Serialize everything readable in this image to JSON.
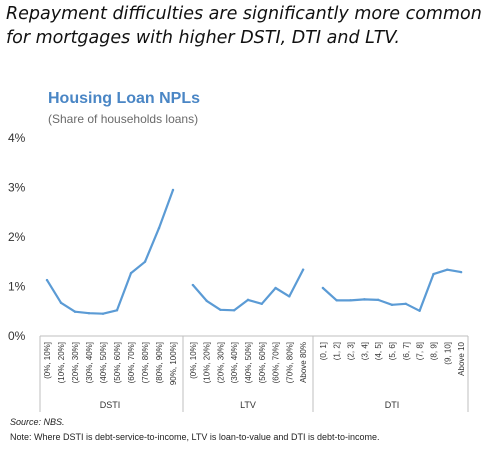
{
  "headline": "Repayment difficulties are significantly more common for mortgages with higher DSTI, DTI and LTV.",
  "source": "Source: NBS.",
  "note": "Note: Where DSTI is debt-service-to-income, LTV is loan-to-value and DTI is debt-to-income.",
  "chart_data": {
    "type": "line",
    "title": "Housing Loan NPLs",
    "subtitle": "(Share of households loans)",
    "ylim": [
      0,
      4
    ],
    "y_ticks": [
      "0%",
      "1%",
      "2%",
      "3%",
      "4%"
    ],
    "grid": false,
    "series_color": "#5b9bd5",
    "groups": [
      {
        "name": "DSTI",
        "categories": [
          "(0%, 10%]",
          "(10%, 20%]",
          "(20%, 30%]",
          "(30%, 40%]",
          "(40%, 50%]",
          "(50%, 60%]",
          "(60%, 70%]",
          "(70%, 80%]",
          "(80%, 90%]",
          "90%, 100%]"
        ],
        "values": [
          1.13,
          0.67,
          0.49,
          0.46,
          0.45,
          0.52,
          1.27,
          1.5,
          2.18,
          2.95
        ]
      },
      {
        "name": "LTV",
        "categories": [
          "(0%, 10%]",
          "(10%, 20%]",
          "(20%, 30%]",
          "(30%, 40%]",
          "(40%, 50%]",
          "(50%, 60%]",
          "(60%, 70%]",
          "(70%, 80%]",
          "Above 80%"
        ],
        "values": [
          1.03,
          0.71,
          0.53,
          0.52,
          0.73,
          0.65,
          0.97,
          0.8,
          1.34
        ]
      },
      {
        "name": "DTI",
        "categories": [
          "(0, 1]",
          "(1, 2]",
          "(2, 3]",
          "(3, 4]",
          "(4, 5]",
          "(5, 6]",
          "(6, 7]",
          "(7, 8]",
          "(8, 9]",
          "(9, 10]",
          "Above 10"
        ],
        "values": [
          0.97,
          0.72,
          0.72,
          0.74,
          0.73,
          0.63,
          0.65,
          0.51,
          1.25,
          1.34,
          1.29
        ]
      }
    ]
  }
}
